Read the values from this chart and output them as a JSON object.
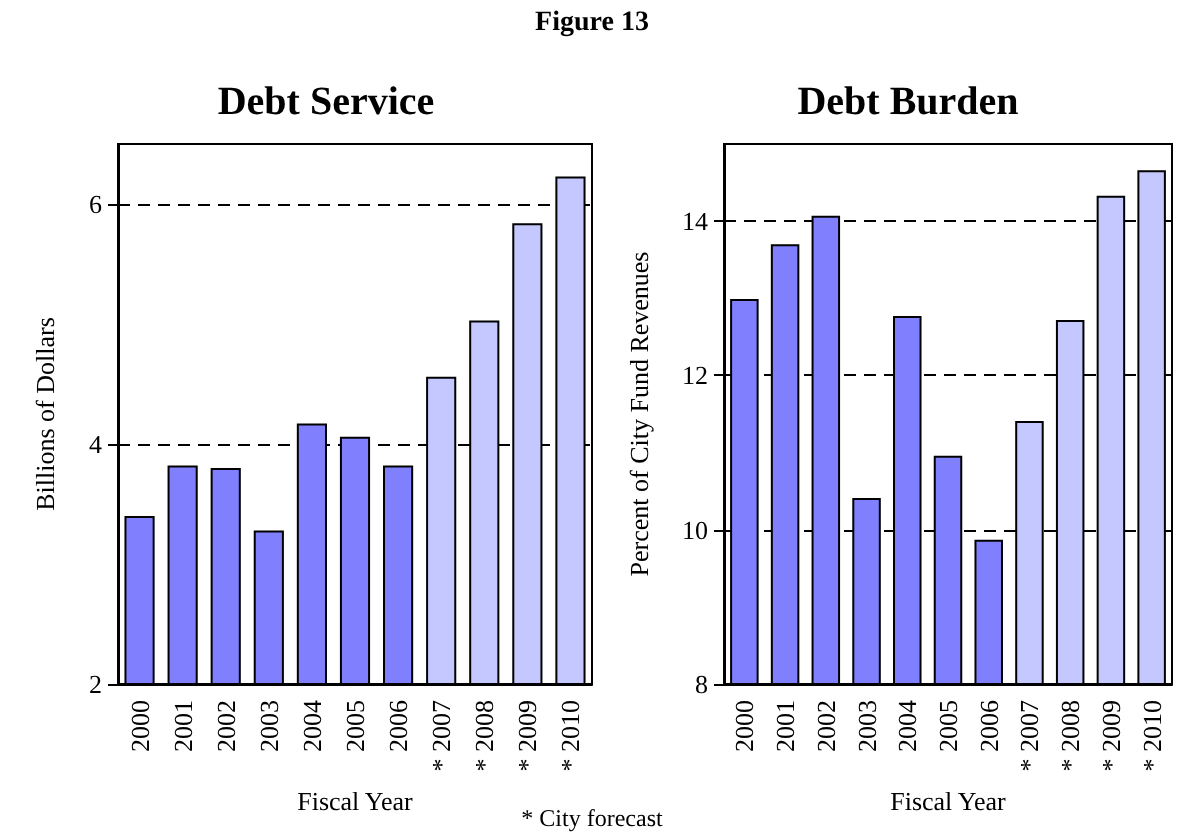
{
  "chart_data": [
    {
      "type": "bar",
      "title": "Debt Service",
      "xlabel": "Fiscal Year",
      "ylabel": "Billions of Dollars",
      "annotations": [
        "Figure 13"
      ],
      "categories": [
        "2000",
        "2001",
        "2002",
        "2003",
        "2004",
        "2005",
        "2006",
        "* 2007",
        "* 2008",
        "* 2009",
        "* 2010"
      ],
      "values": [
        3.4,
        3.82,
        3.8,
        3.28,
        4.17,
        4.06,
        3.82,
        4.56,
        5.03,
        5.84,
        6.23
      ],
      "colors": [
        "#8080ff",
        "#8080ff",
        "#8080ff",
        "#8080ff",
        "#8080ff",
        "#8080ff",
        "#8080ff",
        "#c4c8ff",
        "#c4c8ff",
        "#c4c8ff",
        "#c4c8ff"
      ],
      "ylim": [
        2,
        6.5
      ],
      "yticks": [
        2,
        4,
        6
      ],
      "grid": "y",
      "line_style": "dashed"
    },
    {
      "type": "bar",
      "title": "Debt Burden",
      "xlabel": "Fiscal Year",
      "ylabel": "Percent of City Fund Revenues",
      "annotations": [
        "* City forecast"
      ],
      "categories": [
        "2000",
        "2001",
        "2002",
        "2003",
        "2004",
        "2005",
        "2006",
        "* 2007",
        "* 2008",
        "* 2009",
        "* 2010"
      ],
      "values": [
        12.99,
        13.7,
        14.07,
        10.41,
        12.77,
        10.96,
        9.87,
        11.41,
        12.72,
        14.33,
        14.66
      ],
      "colors": [
        "#8080ff",
        "#8080ff",
        "#8080ff",
        "#8080ff",
        "#8080ff",
        "#8080ff",
        "#8080ff",
        "#c4c8ff",
        "#c4c8ff",
        "#c4c8ff",
        "#c4c8ff"
      ],
      "ylim": [
        8,
        15
      ],
      "yticks": [
        8,
        10,
        12,
        14
      ],
      "grid": "y",
      "line_style": "dashed"
    }
  ]
}
